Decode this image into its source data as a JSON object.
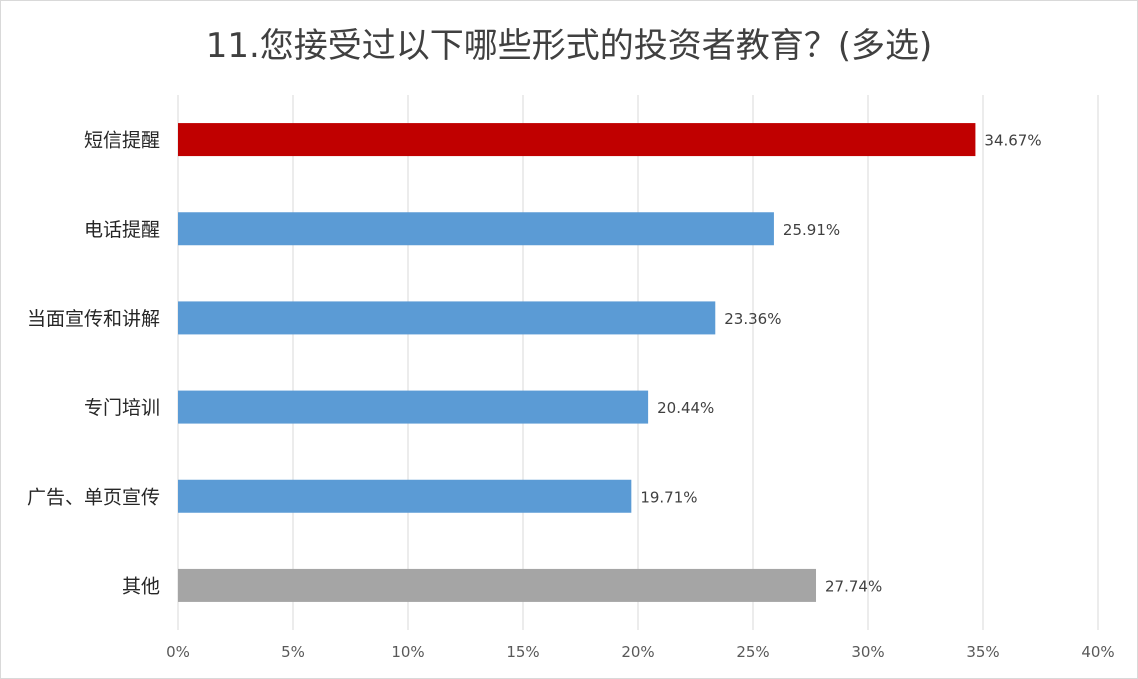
{
  "chart_data": {
    "type": "bar",
    "orientation": "horizontal",
    "title": "11.您接受过以下哪些形式的投资者教育？(多选)",
    "categories": [
      "短信提醒",
      "电话提醒",
      "当面宣传和讲解",
      "专门培训",
      "广告、单页宣传",
      "其他"
    ],
    "values": [
      34.67,
      25.91,
      23.36,
      20.44,
      19.71,
      27.74
    ],
    "data_labels": [
      "34.67%",
      "25.91%",
      "23.36%",
      "20.44%",
      "19.71%",
      "27.74%"
    ],
    "bar_colors": [
      "#c00000",
      "#5b9bd5",
      "#5b9bd5",
      "#5b9bd5",
      "#5b9bd5",
      "#a5a5a5"
    ],
    "xlim": [
      0,
      40
    ],
    "xticks": [
      0,
      5,
      10,
      15,
      20,
      25,
      30,
      35,
      40
    ],
    "xtick_labels": [
      "0%",
      "5%",
      "10%",
      "15%",
      "20%",
      "25%",
      "30%",
      "35%",
      "40%"
    ],
    "grid": true,
    "legend": "none"
  }
}
